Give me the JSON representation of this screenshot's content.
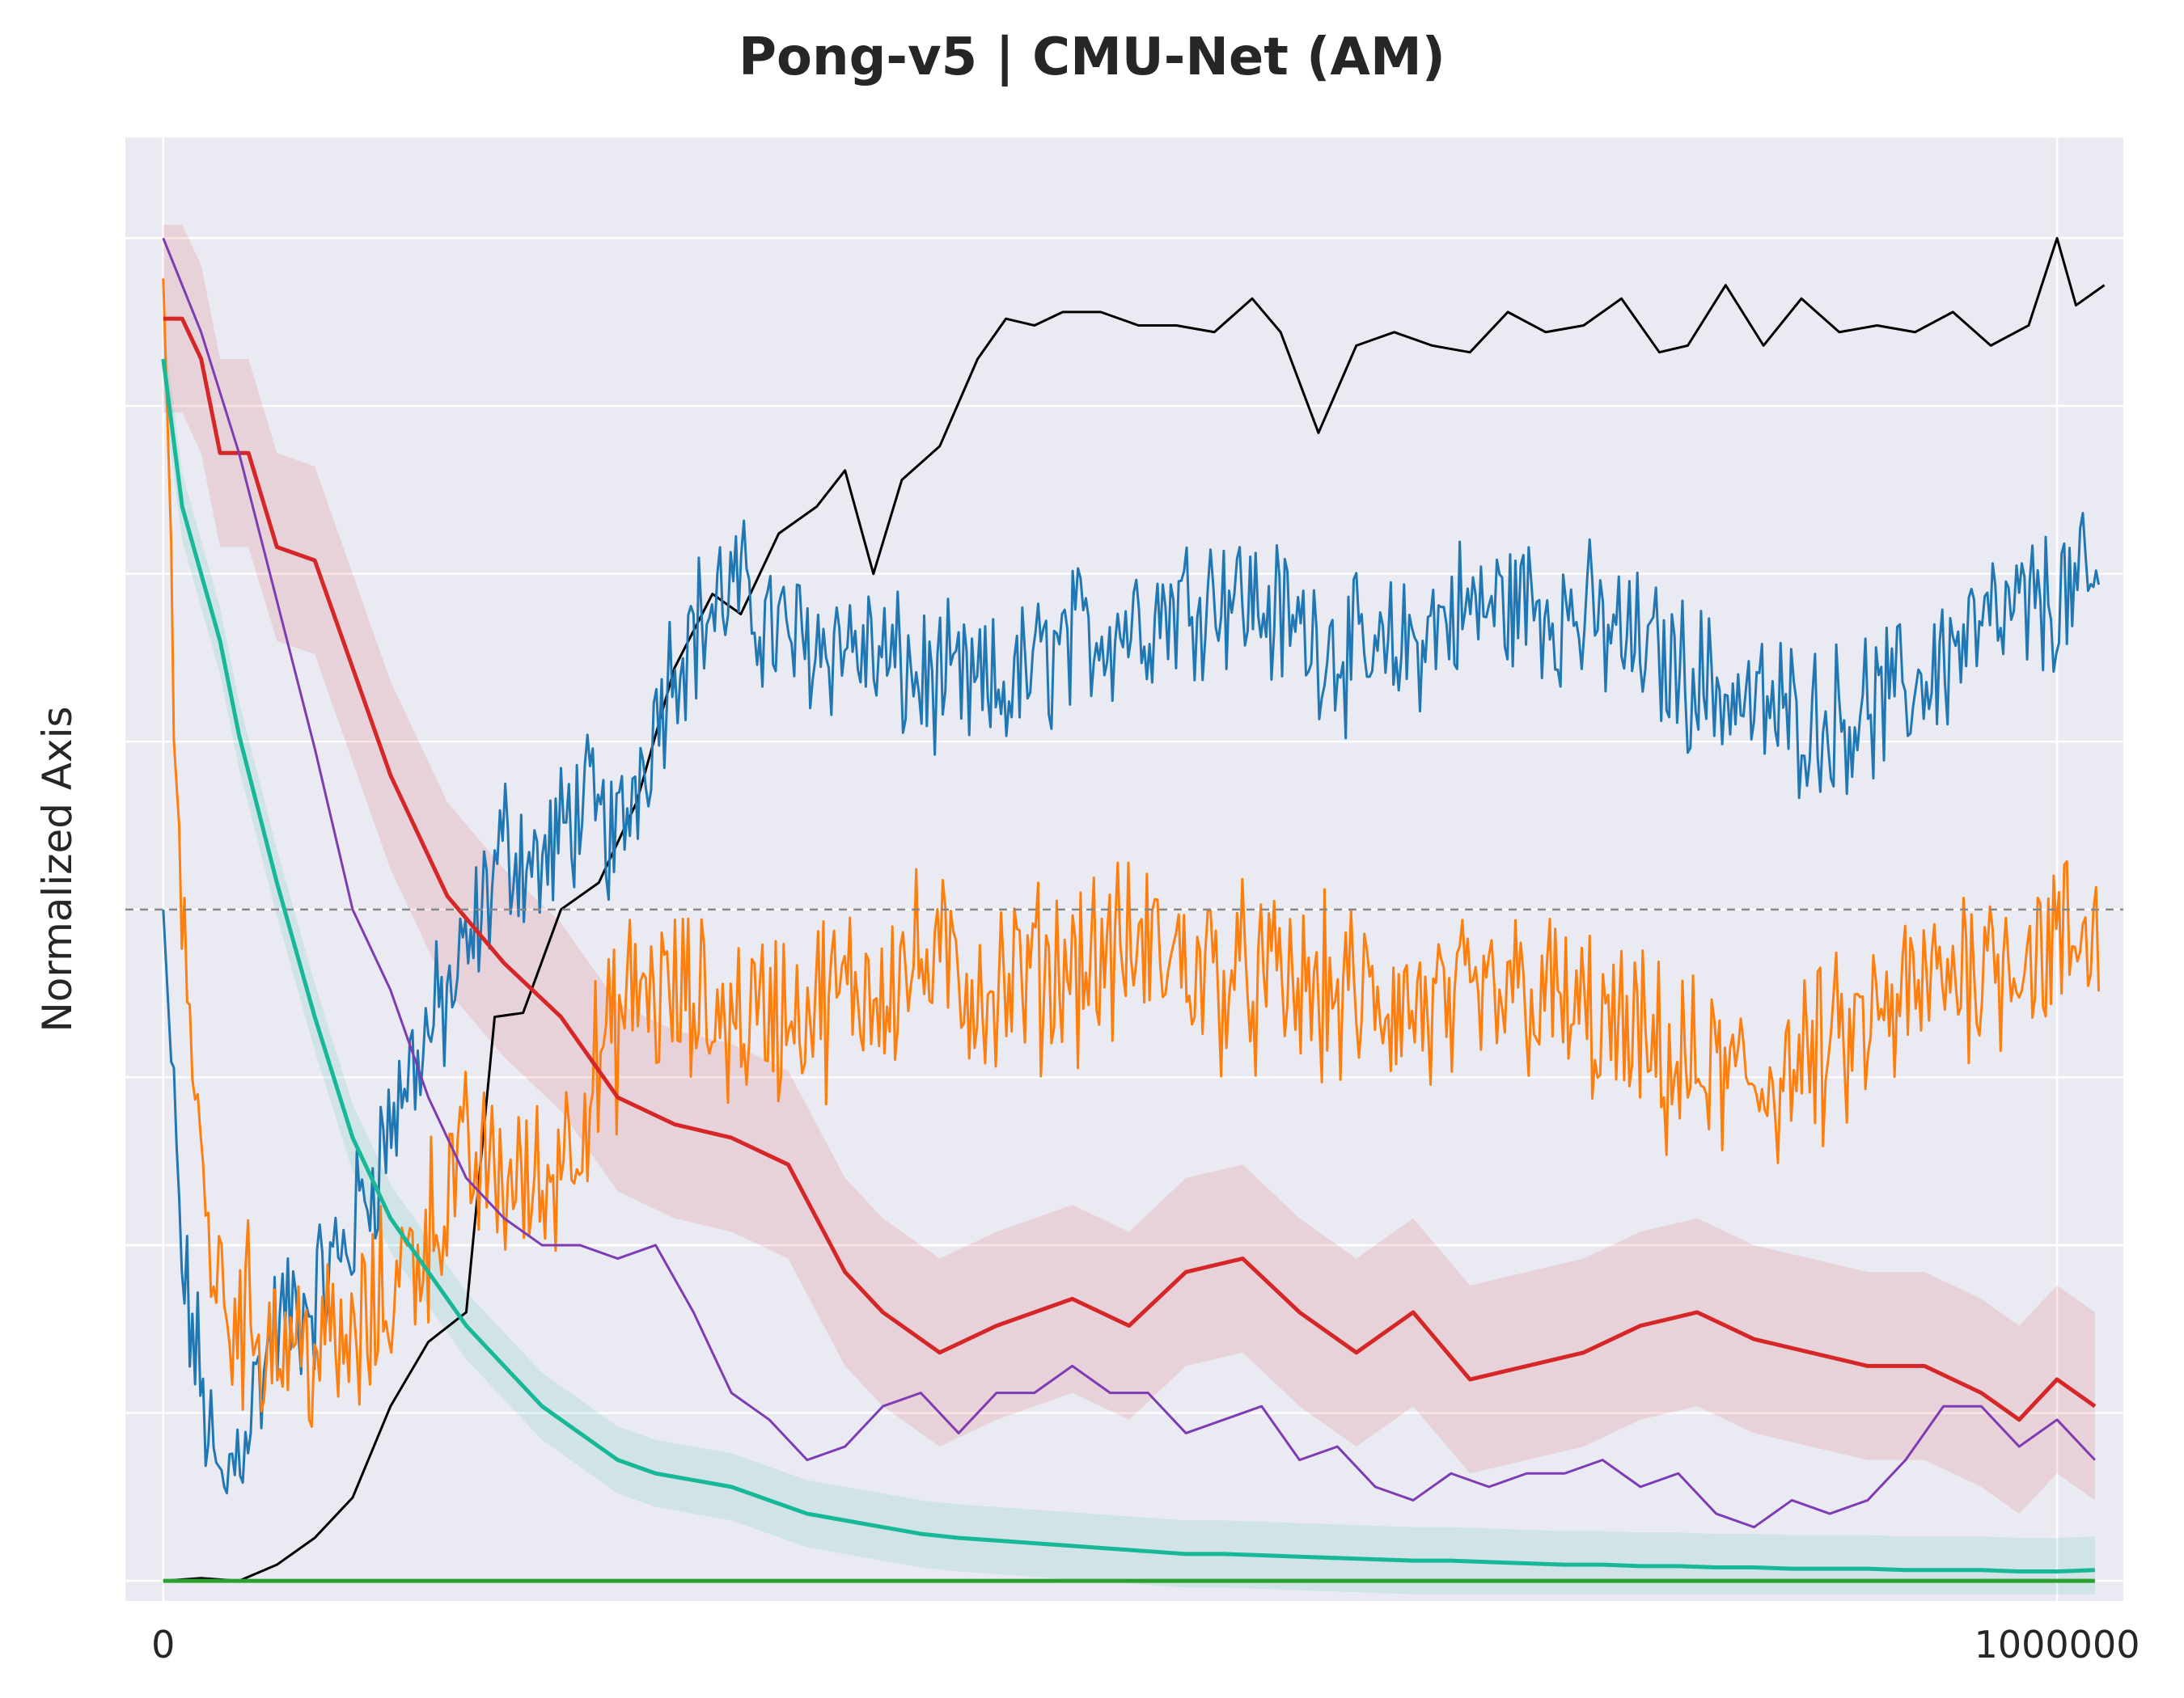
{
  "chart_data": {
    "type": "line",
    "title": "Pong-v5 | CMU-Net (AM)",
    "xlabel": "",
    "ylabel": "Normalized Axis",
    "x_ticks": [
      0,
      1000000
    ],
    "x_tick_labels": [
      "0",
      "1000000"
    ],
    "xlim": [
      -20000,
      1035000
    ],
    "ylim": [
      -0.015,
      1.075
    ],
    "y_ticks": [
      0.0,
      0.125,
      0.25,
      0.375,
      0.5,
      0.625,
      0.75,
      0.875,
      1.0
    ],
    "y_tick_labels": [],
    "reference_line": {
      "y": 0.5,
      "style": "dashed",
      "color": "#888888"
    },
    "grid": true,
    "legend": "none",
    "series": [
      {
        "color": "#000000",
        "points": [
          [
            0,
            0.0
          ],
          [
            20000,
            0.002
          ],
          [
            40000,
            0.0
          ],
          [
            60000,
            0.012
          ],
          [
            80000,
            0.032
          ],
          [
            100000,
            0.062
          ],
          [
            120000,
            0.13
          ],
          [
            140000,
            0.178
          ],
          [
            160000,
            0.2
          ],
          [
            175000,
            0.42
          ],
          [
            190000,
            0.423
          ],
          [
            210000,
            0.5
          ],
          [
            230000,
            0.52
          ],
          [
            250000,
            0.58
          ],
          [
            270000,
            0.68
          ],
          [
            290000,
            0.735
          ],
          [
            305000,
            0.72
          ],
          [
            325000,
            0.78
          ],
          [
            345000,
            0.8
          ],
          [
            360000,
            0.827
          ],
          [
            375000,
            0.75
          ],
          [
            390000,
            0.82
          ],
          [
            410000,
            0.845
          ],
          [
            430000,
            0.91
          ],
          [
            445000,
            0.94
          ],
          [
            460000,
            0.935
          ],
          [
            475000,
            0.945
          ],
          [
            495000,
            0.945
          ],
          [
            515000,
            0.935
          ],
          [
            535000,
            0.935
          ],
          [
            555000,
            0.93
          ],
          [
            575000,
            0.955
          ],
          [
            590000,
            0.93
          ],
          [
            610000,
            0.855
          ],
          [
            630000,
            0.92
          ],
          [
            650000,
            0.93
          ],
          [
            670000,
            0.92
          ],
          [
            690000,
            0.915
          ],
          [
            710000,
            0.945
          ],
          [
            730000,
            0.93
          ],
          [
            750000,
            0.935
          ],
          [
            770000,
            0.955
          ],
          [
            790000,
            0.915
          ],
          [
            805000,
            0.92
          ],
          [
            825000,
            0.965
          ],
          [
            845000,
            0.92
          ],
          [
            865000,
            0.955
          ],
          [
            885000,
            0.93
          ],
          [
            905000,
            0.935
          ],
          [
            925000,
            0.93
          ],
          [
            945000,
            0.945
          ],
          [
            965000,
            0.92
          ],
          [
            985000,
            0.935
          ],
          [
            1000000,
            1.0
          ],
          [
            1010000,
            0.95
          ],
          [
            1025000,
            0.965
          ]
        ]
      },
      {
        "color": "#1f77b4",
        "note": "noisy",
        "base_points": [
          [
            0,
            0.5
          ],
          [
            10000,
            0.23
          ],
          [
            30000,
            0.06
          ],
          [
            60000,
            0.19
          ],
          [
            80000,
            0.21
          ],
          [
            100000,
            0.26
          ],
          [
            130000,
            0.38
          ],
          [
            160000,
            0.46
          ],
          [
            180000,
            0.55
          ],
          [
            200000,
            0.53
          ],
          [
            220000,
            0.58
          ],
          [
            240000,
            0.55
          ],
          [
            250000,
            0.6
          ],
          [
            270000,
            0.69
          ],
          [
            300000,
            0.74
          ],
          [
            330000,
            0.7
          ],
          [
            360000,
            0.7
          ],
          [
            400000,
            0.67
          ],
          [
            440000,
            0.66
          ],
          [
            480000,
            0.7
          ],
          [
            520000,
            0.72
          ],
          [
            560000,
            0.74
          ],
          [
            600000,
            0.71
          ],
          [
            640000,
            0.68
          ],
          [
            680000,
            0.72
          ],
          [
            720000,
            0.73
          ],
          [
            760000,
            0.71
          ],
          [
            800000,
            0.68
          ],
          [
            840000,
            0.65
          ],
          [
            880000,
            0.64
          ],
          [
            920000,
            0.66
          ],
          [
            950000,
            0.7
          ],
          [
            980000,
            0.72
          ],
          [
            1000000,
            0.73
          ],
          [
            1020000,
            0.74
          ]
        ],
        "noise": 0.045
      },
      {
        "color": "#ff7f0e",
        "note": "noisy",
        "base_points": [
          [
            0,
            0.97
          ],
          [
            10000,
            0.5
          ],
          [
            20000,
            0.3
          ],
          [
            30000,
            0.21
          ],
          [
            60000,
            0.18
          ],
          [
            100000,
            0.17
          ],
          [
            130000,
            0.24
          ],
          [
            160000,
            0.31
          ],
          [
            200000,
            0.29
          ],
          [
            250000,
            0.44
          ],
          [
            300000,
            0.42
          ],
          [
            350000,
            0.43
          ],
          [
            400000,
            0.46
          ],
          [
            440000,
            0.44
          ],
          [
            480000,
            0.46
          ],
          [
            520000,
            0.47
          ],
          [
            560000,
            0.45
          ],
          [
            600000,
            0.44
          ],
          [
            640000,
            0.43
          ],
          [
            680000,
            0.42
          ],
          [
            720000,
            0.44
          ],
          [
            760000,
            0.41
          ],
          [
            800000,
            0.38
          ],
          [
            840000,
            0.37
          ],
          [
            880000,
            0.39
          ],
          [
            920000,
            0.43
          ],
          [
            950000,
            0.46
          ],
          [
            980000,
            0.47
          ],
          [
            1000000,
            0.47
          ],
          [
            1020000,
            0.48
          ]
        ],
        "noise": 0.055
      },
      {
        "color": "#d62728",
        "band": 0.07,
        "points": [
          [
            0,
            0.94
          ],
          [
            10000,
            0.94
          ],
          [
            20000,
            0.91
          ],
          [
            30000,
            0.84
          ],
          [
            45000,
            0.84
          ],
          [
            60000,
            0.77
          ],
          [
            80000,
            0.76
          ],
          [
            100000,
            0.68
          ],
          [
            120000,
            0.6
          ],
          [
            150000,
            0.51
          ],
          [
            180000,
            0.46
          ],
          [
            210000,
            0.42
          ],
          [
            240000,
            0.36
          ],
          [
            270000,
            0.34
          ],
          [
            300000,
            0.33
          ],
          [
            330000,
            0.31
          ],
          [
            360000,
            0.23
          ],
          [
            380000,
            0.2
          ],
          [
            410000,
            0.17
          ],
          [
            440000,
            0.19
          ],
          [
            480000,
            0.21
          ],
          [
            510000,
            0.19
          ],
          [
            540000,
            0.23
          ],
          [
            570000,
            0.24
          ],
          [
            600000,
            0.2
          ],
          [
            630000,
            0.17
          ],
          [
            660000,
            0.2
          ],
          [
            690000,
            0.15
          ],
          [
            720000,
            0.16
          ],
          [
            750000,
            0.17
          ],
          [
            780000,
            0.19
          ],
          [
            810000,
            0.2
          ],
          [
            840000,
            0.18
          ],
          [
            870000,
            0.17
          ],
          [
            900000,
            0.16
          ],
          [
            930000,
            0.16
          ],
          [
            960000,
            0.14
          ],
          [
            980000,
            0.12
          ],
          [
            1000000,
            0.15
          ],
          [
            1020000,
            0.13
          ]
        ]
      },
      {
        "color": "#7e3bb3",
        "points": [
          [
            0,
            1.0
          ],
          [
            20000,
            0.93
          ],
          [
            40000,
            0.84
          ],
          [
            60000,
            0.73
          ],
          [
            80000,
            0.62
          ],
          [
            100000,
            0.5
          ],
          [
            120000,
            0.44
          ],
          [
            140000,
            0.36
          ],
          [
            160000,
            0.3
          ],
          [
            180000,
            0.27
          ],
          [
            200000,
            0.25
          ],
          [
            220000,
            0.25
          ],
          [
            240000,
            0.24
          ],
          [
            260000,
            0.25
          ],
          [
            280000,
            0.2
          ],
          [
            300000,
            0.14
          ],
          [
            320000,
            0.12
          ],
          [
            340000,
            0.09
          ],
          [
            360000,
            0.1
          ],
          [
            380000,
            0.13
          ],
          [
            400000,
            0.14
          ],
          [
            420000,
            0.11
          ],
          [
            440000,
            0.14
          ],
          [
            460000,
            0.14
          ],
          [
            480000,
            0.16
          ],
          [
            500000,
            0.14
          ],
          [
            520000,
            0.14
          ],
          [
            540000,
            0.11
          ],
          [
            560000,
            0.12
          ],
          [
            580000,
            0.13
          ],
          [
            600000,
            0.09
          ],
          [
            620000,
            0.1
          ],
          [
            640000,
            0.07
          ],
          [
            660000,
            0.06
          ],
          [
            680000,
            0.08
          ],
          [
            700000,
            0.07
          ],
          [
            720000,
            0.08
          ],
          [
            740000,
            0.08
          ],
          [
            760000,
            0.09
          ],
          [
            780000,
            0.07
          ],
          [
            800000,
            0.08
          ],
          [
            820000,
            0.05
          ],
          [
            840000,
            0.04
          ],
          [
            860000,
            0.06
          ],
          [
            880000,
            0.05
          ],
          [
            900000,
            0.06
          ],
          [
            920000,
            0.09
          ],
          [
            940000,
            0.13
          ],
          [
            960000,
            0.13
          ],
          [
            980000,
            0.1
          ],
          [
            1000000,
            0.12
          ],
          [
            1020000,
            0.09
          ]
        ]
      },
      {
        "color": "#17b897",
        "band": 0.025,
        "points": [
          [
            0,
            0.91
          ],
          [
            10000,
            0.8
          ],
          [
            20000,
            0.75
          ],
          [
            30000,
            0.7
          ],
          [
            40000,
            0.63
          ],
          [
            60000,
            0.52
          ],
          [
            80000,
            0.42
          ],
          [
            100000,
            0.33
          ],
          [
            120000,
            0.27
          ],
          [
            140000,
            0.23
          ],
          [
            160000,
            0.19
          ],
          [
            180000,
            0.16
          ],
          [
            200000,
            0.13
          ],
          [
            220000,
            0.11
          ],
          [
            240000,
            0.09
          ],
          [
            260000,
            0.08
          ],
          [
            280000,
            0.075
          ],
          [
            300000,
            0.07
          ],
          [
            320000,
            0.06
          ],
          [
            340000,
            0.05
          ],
          [
            360000,
            0.045
          ],
          [
            380000,
            0.04
          ],
          [
            400000,
            0.035
          ],
          [
            420000,
            0.032
          ],
          [
            440000,
            0.03
          ],
          [
            460000,
            0.028
          ],
          [
            480000,
            0.026
          ],
          [
            500000,
            0.024
          ],
          [
            520000,
            0.022
          ],
          [
            540000,
            0.02
          ],
          [
            560000,
            0.02
          ],
          [
            580000,
            0.019
          ],
          [
            600000,
            0.018
          ],
          [
            620000,
            0.017
          ],
          [
            640000,
            0.016
          ],
          [
            660000,
            0.015
          ],
          [
            680000,
            0.015
          ],
          [
            700000,
            0.014
          ],
          [
            720000,
            0.013
          ],
          [
            740000,
            0.012
          ],
          [
            760000,
            0.012
          ],
          [
            780000,
            0.011
          ],
          [
            800000,
            0.011
          ],
          [
            820000,
            0.01
          ],
          [
            840000,
            0.01
          ],
          [
            860000,
            0.009
          ],
          [
            880000,
            0.009
          ],
          [
            900000,
            0.009
          ],
          [
            920000,
            0.008
          ],
          [
            940000,
            0.008
          ],
          [
            960000,
            0.008
          ],
          [
            980000,
            0.007
          ],
          [
            1000000,
            0.007
          ],
          [
            1020000,
            0.008
          ]
        ]
      },
      {
        "color": "#2ca02c",
        "points": [
          [
            0,
            0.0
          ],
          [
            1020000,
            0.0
          ]
        ]
      }
    ]
  }
}
